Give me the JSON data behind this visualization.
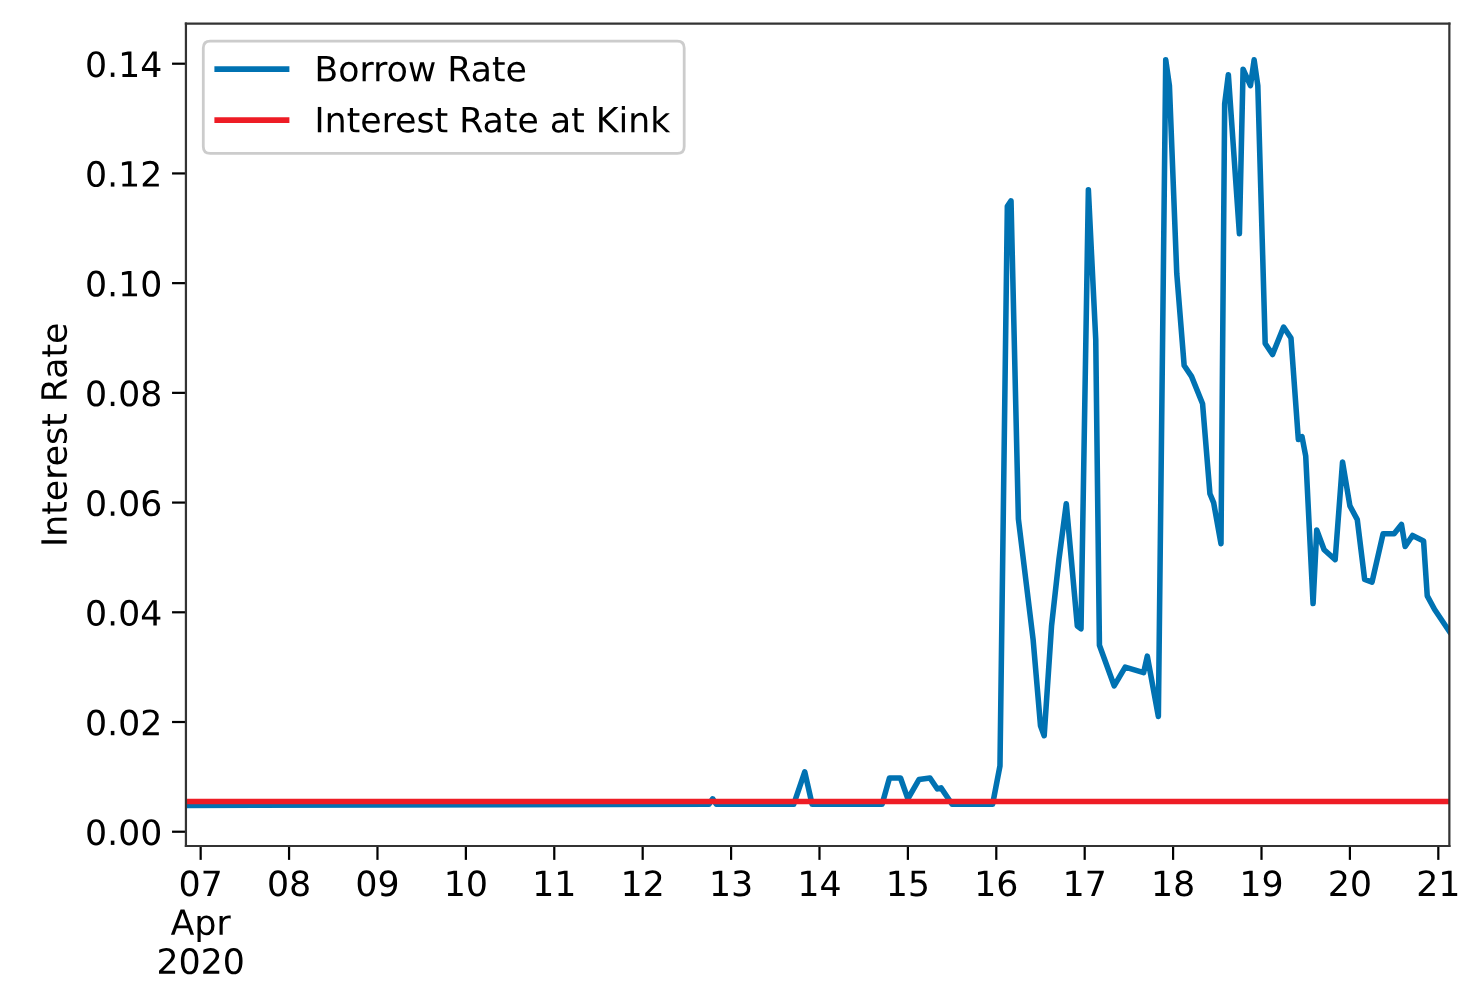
{
  "chart_data": {
    "type": "line",
    "ylabel": "Interest Rate",
    "legend": "top left",
    "grid": false,
    "marker": "none",
    "line_style": "solid",
    "xlim": [
      "2020-04-06T20:00",
      "2020-04-21T03:00"
    ],
    "xticks": [
      {
        "value": "2020-04-07",
        "label": "07\nApr\n2020"
      },
      {
        "value": "2020-04-08",
        "label": "08"
      },
      {
        "value": "2020-04-09",
        "label": "09"
      },
      {
        "value": "2020-04-10",
        "label": "10"
      },
      {
        "value": "2020-04-11",
        "label": "11"
      },
      {
        "value": "2020-04-12",
        "label": "12"
      },
      {
        "value": "2020-04-13",
        "label": "13"
      },
      {
        "value": "2020-04-14",
        "label": "14"
      },
      {
        "value": "2020-04-15",
        "label": "15"
      },
      {
        "value": "2020-04-16",
        "label": "16"
      },
      {
        "value": "2020-04-17",
        "label": "17"
      },
      {
        "value": "2020-04-18",
        "label": "18"
      },
      {
        "value": "2020-04-19",
        "label": "19"
      },
      {
        "value": "2020-04-20",
        "label": "20"
      },
      {
        "value": "2020-04-21",
        "label": "21"
      }
    ],
    "ylim": [
      -0.0026,
      0.1473
    ],
    "yticks": [
      {
        "value": 0,
        "label": "0.00"
      },
      {
        "value": 0.02,
        "label": "0.02"
      },
      {
        "value": 0.04,
        "label": "0.04"
      },
      {
        "value": 0.06,
        "label": "0.06"
      },
      {
        "value": 0.08,
        "label": "0.08"
      },
      {
        "value": 0.1,
        "label": "0.10"
      },
      {
        "value": 0.12,
        "label": "0.12"
      },
      {
        "value": 0.14,
        "label": "0.14"
      }
    ],
    "series": [
      {
        "name": "Borrow Rate",
        "color": "#0072b2",
        "x": [
          "2020-04-06T20:00",
          "2020-04-12T18:00",
          "2020-04-12T19:00",
          "2020-04-12T20:00",
          "2020-04-13T17:00",
          "2020-04-13T20:00",
          "2020-04-13T22:00",
          "2020-04-14T17:00",
          "2020-04-14T19:00",
          "2020-04-14T22:00",
          "2020-04-15T00:00",
          "2020-04-15T03:00",
          "2020-04-15T06:00",
          "2020-04-15T08:00",
          "2020-04-15T09:00",
          "2020-04-15T11:00",
          "2020-04-15T12:00",
          "2020-04-15T23:00",
          "2020-04-16T01:00",
          "2020-04-16T03:00",
          "2020-04-16T04:00",
          "2020-04-16T06:00",
          "2020-04-16T10:00",
          "2020-04-16T12:00",
          "2020-04-16T13:00",
          "2020-04-16T15:00",
          "2020-04-16T17:00",
          "2020-04-16T19:00",
          "2020-04-16T22:00",
          "2020-04-16T23:00",
          "2020-04-17T01:00",
          "2020-04-17T03:00",
          "2020-04-17T04:00",
          "2020-04-17T08:00",
          "2020-04-17T11:00",
          "2020-04-17T16:00",
          "2020-04-17T17:00",
          "2020-04-17T20:00",
          "2020-04-17T22:00",
          "2020-04-17T23:00",
          "2020-04-18T01:00",
          "2020-04-18T03:00",
          "2020-04-18T05:00",
          "2020-04-18T08:00",
          "2020-04-18T10:00",
          "2020-04-18T11:00",
          "2020-04-18T13:00",
          "2020-04-18T14:00",
          "2020-04-18T15:00",
          "2020-04-18T18:00",
          "2020-04-18T19:00",
          "2020-04-18T21:00",
          "2020-04-18T22:00",
          "2020-04-18T23:00",
          "2020-04-19T01:00",
          "2020-04-19T03:00",
          "2020-04-19T06:00",
          "2020-04-19T08:00",
          "2020-04-19T10:00",
          "2020-04-19T11:00",
          "2020-04-19T12:00",
          "2020-04-19T14:00",
          "2020-04-19T15:00",
          "2020-04-19T17:00",
          "2020-04-19T20:00",
          "2020-04-19T22:00",
          "2020-04-20T00:00",
          "2020-04-20T02:00",
          "2020-04-20T04:00",
          "2020-04-20T06:00",
          "2020-04-20T09:00",
          "2020-04-20T12:00",
          "2020-04-20T14:00",
          "2020-04-20T15:00",
          "2020-04-20T17:00",
          "2020-04-20T20:00",
          "2020-04-20T21:00",
          "2020-04-20T23:00",
          "2020-04-21T03:00"
        ],
        "values": [
          0.0048,
          0.005,
          0.006,
          0.005,
          0.005,
          0.0109,
          0.005,
          0.005,
          0.0098,
          0.0098,
          0.006,
          0.0095,
          0.0098,
          0.0078,
          0.008,
          0.006,
          0.005,
          0.005,
          0.012,
          0.114,
          0.115,
          0.057,
          0.035,
          0.0193,
          0.0175,
          0.0375,
          0.0496,
          0.0598,
          0.0375,
          0.037,
          0.117,
          0.0897,
          0.034,
          0.0266,
          0.03,
          0.029,
          0.032,
          0.021,
          0.1407,
          0.136,
          0.1017,
          0.085,
          0.083,
          0.078,
          0.0616,
          0.06,
          0.0525,
          0.1327,
          0.138,
          0.109,
          0.139,
          0.136,
          0.1407,
          0.136,
          0.089,
          0.087,
          0.092,
          0.09,
          0.0715,
          0.072,
          0.0685,
          0.0416,
          0.055,
          0.0514,
          0.0496,
          0.0674,
          0.0594,
          0.0569,
          0.046,
          0.0455,
          0.0543,
          0.0543,
          0.056,
          0.052,
          0.054,
          0.053,
          0.043,
          0.0405,
          0.0365
        ]
      },
      {
        "name": "Interest Rate at Kink",
        "color": "#ee1c25",
        "x": [
          "2020-04-06T20:00",
          "2020-04-21T03:00"
        ],
        "values": [
          0.0055,
          0.0055
        ]
      }
    ]
  }
}
